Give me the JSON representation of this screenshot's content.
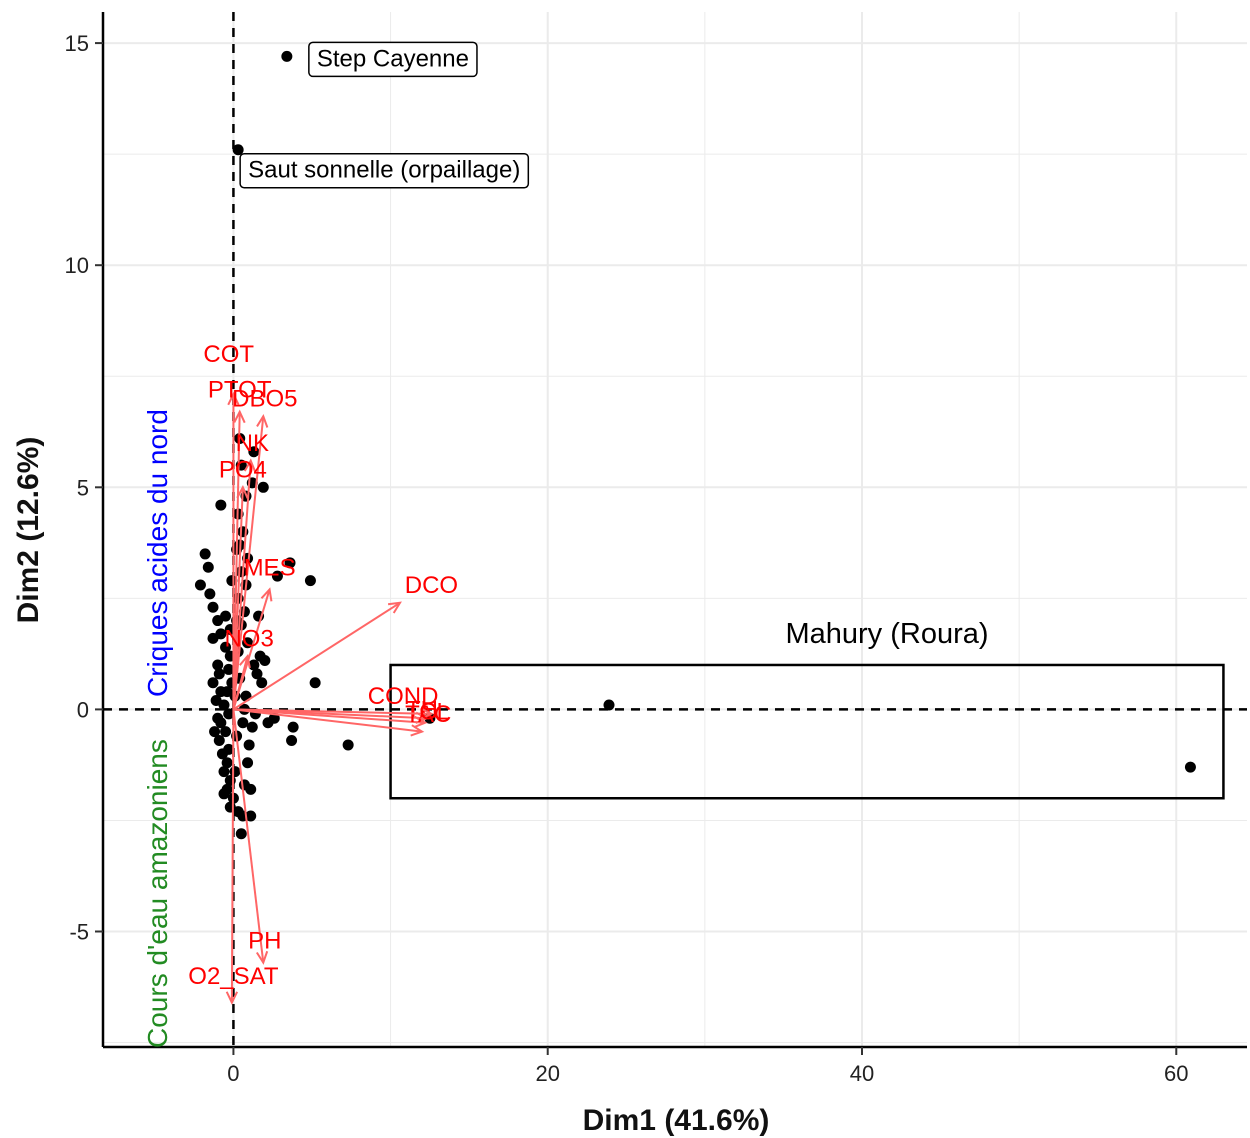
{
  "chart_data": {
    "type": "scatter",
    "title": "",
    "xlabel": "Dim1 (41.6%)",
    "ylabel": "Dim2 (12.6%)",
    "xlim": [
      -8.3,
      64.5
    ],
    "ylim": [
      -7.6,
      15.7
    ],
    "xticks": [
      0,
      20,
      40,
      60
    ],
    "yticks": [
      -5,
      0,
      5,
      10,
      15
    ],
    "tick_labels_x": [
      "0",
      "20",
      "40",
      "60"
    ],
    "tick_labels_y": [
      "-5",
      "0",
      "5",
      "10",
      "15"
    ],
    "grid": true,
    "colors": {
      "points": "#000000",
      "arrows": "#ff6666",
      "arrow_labels": "#ff0000",
      "side_top": "#0000ff",
      "side_bottom": "#228b22",
      "grid": "#ebebeb"
    },
    "side_labels": {
      "top": "Criques acides du nord",
      "bottom": "Cours d'eau amazoniens"
    },
    "region": {
      "label": "Mahury (Roura)",
      "x0": 10,
      "x1": 63,
      "y0": -2,
      "y1": 1
    },
    "labeled_points": [
      {
        "label": "Step Cayenne",
        "x": 3.4,
        "y": 14.7
      },
      {
        "label": "Saut sonnelle (orpaillage)",
        "x": 0.3,
        "y": 12.6
      }
    ],
    "variables": [
      {
        "name": "COT",
        "x": -0.3,
        "y": 8.0,
        "ax": 0.0,
        "ay": 7.1
      },
      {
        "name": "PTOT",
        "x": 0.4,
        "y": 7.2,
        "ax": 0.4,
        "ay": 6.7
      },
      {
        "name": "DBO5",
        "x": 2.0,
        "y": 7.0,
        "ax": 1.9,
        "ay": 6.6
      },
      {
        "name": "NK",
        "x": 1.2,
        "y": 6.0,
        "ax": 1.1,
        "ay": 5.6
      },
      {
        "name": "PO4",
        "x": 0.6,
        "y": 5.4,
        "ax": 0.6,
        "ay": 5.0
      },
      {
        "name": "MES",
        "x": 2.3,
        "y": 3.2,
        "ax": 2.3,
        "ay": 2.7
      },
      {
        "name": "NO3",
        "x": 1.0,
        "y": 1.6,
        "ax": 0.9,
        "ay": 1.2
      },
      {
        "name": "DCO",
        "x": 12.6,
        "y": 2.8,
        "ax": 10.6,
        "ay": 2.4
      },
      {
        "name": "COND",
        "x": 10.8,
        "y": 0.3,
        "ax": 12.2,
        "ay": -0.3
      },
      {
        "name": "TH",
        "x": 12.0,
        "y": 0.0,
        "ax": 12.0,
        "ay": -0.5
      },
      {
        "name": "TAC",
        "x": 12.4,
        "y": -0.1,
        "ax": 12.3,
        "ay": -0.2
      },
      {
        "name": "CL",
        "x": 12.8,
        "y": -0.05,
        "ax": 12.6,
        "ay": -0.1
      },
      {
        "name": "PH",
        "x": 2.0,
        "y": -5.2,
        "ax": 1.9,
        "ay": -5.7
      },
      {
        "name": "O2_SAT",
        "x": 0.0,
        "y": -6.0,
        "ax": -0.1,
        "ay": -6.6
      }
    ],
    "points": [
      [
        3.4,
        14.7
      ],
      [
        0.3,
        12.6
      ],
      [
        23.9,
        0.1
      ],
      [
        60.9,
        -1.3
      ],
      [
        -0.8,
        4.6
      ],
      [
        -1.8,
        3.5
      ],
      [
        -1.6,
        3.2
      ],
      [
        -2.1,
        2.8
      ],
      [
        -1.5,
        2.6
      ],
      [
        -1.3,
        2.3
      ],
      [
        -1.0,
        2.0
      ],
      [
        -0.8,
        1.7
      ],
      [
        -1.3,
        1.6
      ],
      [
        -0.5,
        1.4
      ],
      [
        -0.2,
        1.2
      ],
      [
        -1.0,
        1.0
      ],
      [
        -0.3,
        0.9
      ],
      [
        -1.3,
        0.6
      ],
      [
        -0.8,
        0.4
      ],
      [
        -1.1,
        0.2
      ],
      [
        -0.6,
        0.1
      ],
      [
        -0.3,
        -0.1
      ],
      [
        -0.8,
        -0.3
      ],
      [
        -0.5,
        -0.5
      ],
      [
        -0.9,
        -0.7
      ],
      [
        -0.3,
        -0.9
      ],
      [
        -0.7,
        -1.0
      ],
      [
        -0.4,
        -1.2
      ],
      [
        -0.6,
        -1.4
      ],
      [
        -0.2,
        -1.6
      ],
      [
        -0.4,
        -1.8
      ],
      [
        0.0,
        -2.0
      ],
      [
        -0.2,
        -2.2
      ],
      [
        0.3,
        -2.3
      ],
      [
        0.6,
        -2.4
      ],
      [
        1.1,
        -2.4
      ],
      [
        0.5,
        -2.8
      ],
      [
        0.7,
        -1.7
      ],
      [
        0.9,
        -1.2
      ],
      [
        1.0,
        -0.8
      ],
      [
        1.2,
        -0.4
      ],
      [
        1.4,
        -0.1
      ],
      [
        0.8,
        0.3
      ],
      [
        1.5,
        0.8
      ],
      [
        1.7,
        1.2
      ],
      [
        0.9,
        1.5
      ],
      [
        0.5,
        1.9
      ],
      [
        0.7,
        2.2
      ],
      [
        0.3,
        2.5
      ],
      [
        0.8,
        2.8
      ],
      [
        0.5,
        3.1
      ],
      [
        0.9,
        3.4
      ],
      [
        0.4,
        3.7
      ],
      [
        0.6,
        4.0
      ],
      [
        0.3,
        4.4
      ],
      [
        0.8,
        4.8
      ],
      [
        1.2,
        5.1
      ],
      [
        0.5,
        5.5
      ],
      [
        1.3,
        5.8
      ],
      [
        0.4,
        6.1
      ],
      [
        1.9,
        5.0
      ],
      [
        3.6,
        3.3
      ],
      [
        4.9,
        2.9
      ],
      [
        2.8,
        3.0
      ],
      [
        5.2,
        0.6
      ],
      [
        7.3,
        -0.8
      ],
      [
        3.7,
        -0.7
      ],
      [
        3.8,
        -0.4
      ],
      [
        2.2,
        -0.3
      ],
      [
        2.6,
        -0.2
      ],
      [
        12.5,
        -0.2
      ],
      [
        0.1,
        0.3
      ],
      [
        -0.1,
        0.6
      ],
      [
        0.2,
        -0.6
      ],
      [
        -0.2,
        1.8
      ],
      [
        0.2,
        2.0
      ],
      [
        1.3,
        1.0
      ],
      [
        1.8,
        0.6
      ],
      [
        2.0,
        1.1
      ],
      [
        -0.5,
        2.1
      ],
      [
        0.1,
        -1.4
      ],
      [
        0.6,
        -0.3
      ],
      [
        -1.0,
        -0.2
      ],
      [
        -1.2,
        -0.5
      ],
      [
        -0.9,
        0.8
      ],
      [
        0.4,
        0.7
      ],
      [
        1.1,
        -1.8
      ],
      [
        -0.6,
        -1.9
      ],
      [
        0.3,
        1.3
      ],
      [
        1.6,
        2.1
      ],
      [
        0.2,
        3.6
      ],
      [
        -0.1,
        2.9
      ],
      [
        0.7,
        0.0
      ],
      [
        -0.4,
        0.4
      ]
    ]
  }
}
